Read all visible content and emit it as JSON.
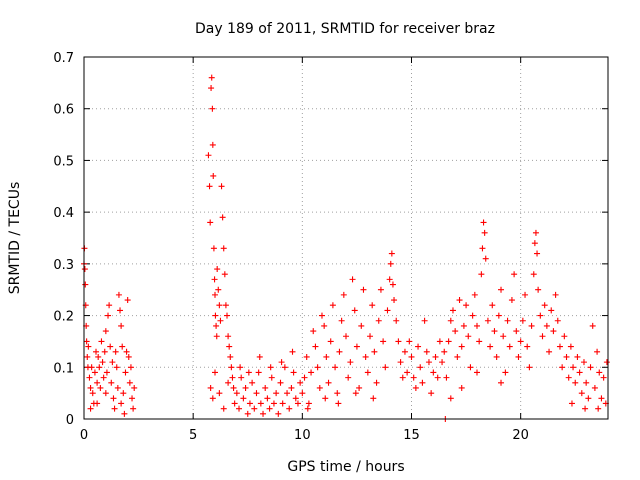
{
  "chart_data": {
    "type": "scatter",
    "title": "Day 189 of 2011, SRMTID for receiver braz",
    "xlabel": "GPS time / hours",
    "ylabel": "SRMTID / TECUs",
    "xlim": [
      0,
      24
    ],
    "ylim": [
      0,
      0.7
    ],
    "xticks": [
      0,
      5,
      10,
      15,
      20
    ],
    "xtick_labels": [
      "0",
      "5",
      "10",
      "15",
      "20"
    ],
    "yticks": [
      0,
      0.1,
      0.2,
      0.3,
      0.4,
      0.5,
      0.6,
      0.7
    ],
    "ytick_labels": [
      "0",
      "0.1",
      "0.2",
      "0.3",
      "0.4",
      "0.5",
      "0.6",
      "0.7"
    ],
    "grid": true,
    "marker": "+",
    "series": [
      {
        "name": "SRMTID",
        "color": "#ff0000",
        "points": [
          [
            0.0,
            0.3
          ],
          [
            0.02,
            0.33
          ],
          [
            0.04,
            0.29
          ],
          [
            0.06,
            0.26
          ],
          [
            0.08,
            0.22
          ],
          [
            0.1,
            0.18
          ],
          [
            0.12,
            0.15
          ],
          [
            0.15,
            0.12
          ],
          [
            0.18,
            0.1
          ],
          [
            0.2,
            0.14
          ],
          [
            0.25,
            0.08
          ],
          [
            0.3,
            0.06
          ],
          [
            0.35,
            0.1
          ],
          [
            0.4,
            0.05
          ],
          [
            0.45,
            0.03
          ],
          [
            0.5,
            0.09
          ],
          [
            0.55,
            0.13
          ],
          [
            0.6,
            0.07
          ],
          [
            0.65,
            0.12
          ],
          [
            0.7,
            0.1
          ],
          [
            0.75,
            0.06
          ],
          [
            0.8,
            0.15
          ],
          [
            0.85,
            0.11
          ],
          [
            0.9,
            0.08
          ],
          [
            0.95,
            0.13
          ],
          [
            1.0,
            0.17
          ],
          [
            1.05,
            0.09
          ],
          [
            1.1,
            0.2
          ],
          [
            1.15,
            0.22
          ],
          [
            1.2,
            0.14
          ],
          [
            1.25,
            0.07
          ],
          [
            1.3,
            0.11
          ],
          [
            1.35,
            0.04
          ],
          [
            1.4,
            0.02
          ],
          [
            1.45,
            0.13
          ],
          [
            1.5,
            0.1
          ],
          [
            1.55,
            0.06
          ],
          [
            1.6,
            0.24
          ],
          [
            1.65,
            0.21
          ],
          [
            1.7,
            0.18
          ],
          [
            1.75,
            0.14
          ],
          [
            1.8,
            0.05
          ],
          [
            1.85,
            0.01
          ],
          [
            1.9,
            0.09
          ],
          [
            1.95,
            0.13
          ],
          [
            2.0,
            0.23
          ],
          [
            2.05,
            0.12
          ],
          [
            2.1,
            0.07
          ],
          [
            2.15,
            0.1
          ],
          [
            2.2,
            0.04
          ],
          [
            2.25,
            0.02
          ],
          [
            2.3,
            0.06
          ],
          [
            0.3,
            0.02
          ],
          [
            0.6,
            0.03
          ],
          [
            1.0,
            0.05
          ],
          [
            1.7,
            0.03
          ],
          [
            5.7,
            0.51
          ],
          [
            5.75,
            0.45
          ],
          [
            5.78,
            0.38
          ],
          [
            5.82,
            0.64
          ],
          [
            5.85,
            0.66
          ],
          [
            5.88,
            0.6
          ],
          [
            5.9,
            0.53
          ],
          [
            5.92,
            0.47
          ],
          [
            5.95,
            0.33
          ],
          [
            5.98,
            0.27
          ],
          [
            6.0,
            0.24
          ],
          [
            6.02,
            0.2
          ],
          [
            6.05,
            0.18
          ],
          [
            6.08,
            0.16
          ],
          [
            6.1,
            0.29
          ],
          [
            6.15,
            0.25
          ],
          [
            6.2,
            0.22
          ],
          [
            6.25,
            0.19
          ],
          [
            6.3,
            0.45
          ],
          [
            6.35,
            0.39
          ],
          [
            6.4,
            0.33
          ],
          [
            6.45,
            0.28
          ],
          [
            6.5,
            0.22
          ],
          [
            6.55,
            0.2
          ],
          [
            6.6,
            0.16
          ],
          [
            6.65,
            0.14
          ],
          [
            6.7,
            0.12
          ],
          [
            6.75,
            0.1
          ],
          [
            6.8,
            0.08
          ],
          [
            6.85,
            0.06
          ],
          [
            6.9,
            0.03
          ],
          [
            5.8,
            0.06
          ],
          [
            5.9,
            0.04
          ],
          [
            6.0,
            0.09
          ],
          [
            6.2,
            0.05
          ],
          [
            6.4,
            0.02
          ],
          [
            6.6,
            0.07
          ],
          [
            7.0,
            0.05
          ],
          [
            7.1,
            0.02
          ],
          [
            7.2,
            0.08
          ],
          [
            7.3,
            0.04
          ],
          [
            7.4,
            0.06
          ],
          [
            7.5,
            0.01
          ],
          [
            7.6,
            0.03
          ],
          [
            7.7,
            0.07
          ],
          [
            7.8,
            0.02
          ],
          [
            7.9,
            0.05
          ],
          [
            8.0,
            0.09
          ],
          [
            8.1,
            0.03
          ],
          [
            8.2,
            0.01
          ],
          [
            8.3,
            0.06
          ],
          [
            8.4,
            0.04
          ],
          [
            8.5,
            0.02
          ],
          [
            8.6,
            0.08
          ],
          [
            8.7,
            0.03
          ],
          [
            8.8,
            0.05
          ],
          [
            8.9,
            0.01
          ],
          [
            9.0,
            0.07
          ],
          [
            9.1,
            0.03
          ],
          [
            9.2,
            0.1
          ],
          [
            9.3,
            0.05
          ],
          [
            9.4,
            0.02
          ],
          [
            9.5,
            0.06
          ],
          [
            9.6,
            0.09
          ],
          [
            9.7,
            0.04
          ],
          [
            9.8,
            0.03
          ],
          [
            9.9,
            0.07
          ],
          [
            7.15,
            0.1
          ],
          [
            7.55,
            0.09
          ],
          [
            8.05,
            0.12
          ],
          [
            8.55,
            0.1
          ],
          [
            9.05,
            0.11
          ],
          [
            9.55,
            0.13
          ],
          [
            10.0,
            0.05
          ],
          [
            10.1,
            0.08
          ],
          [
            10.2,
            0.12
          ],
          [
            10.3,
            0.03
          ],
          [
            10.4,
            0.09
          ],
          [
            10.5,
            0.17
          ],
          [
            10.6,
            0.14
          ],
          [
            10.7,
            0.1
          ],
          [
            10.8,
            0.06
          ],
          [
            10.9,
            0.2
          ],
          [
            11.0,
            0.18
          ],
          [
            11.1,
            0.12
          ],
          [
            11.2,
            0.07
          ],
          [
            11.3,
            0.15
          ],
          [
            11.4,
            0.22
          ],
          [
            11.5,
            0.1
          ],
          [
            11.6,
            0.05
          ],
          [
            11.7,
            0.13
          ],
          [
            11.8,
            0.19
          ],
          [
            11.9,
            0.24
          ],
          [
            12.0,
            0.16
          ],
          [
            12.1,
            0.08
          ],
          [
            12.2,
            0.11
          ],
          [
            12.3,
            0.27
          ],
          [
            12.4,
            0.21
          ],
          [
            12.5,
            0.14
          ],
          [
            12.6,
            0.06
          ],
          [
            12.7,
            0.18
          ],
          [
            12.8,
            0.25
          ],
          [
            12.9,
            0.12
          ],
          [
            13.0,
            0.09
          ],
          [
            13.1,
            0.16
          ],
          [
            13.2,
            0.22
          ],
          [
            13.3,
            0.13
          ],
          [
            13.4,
            0.07
          ],
          [
            13.5,
            0.19
          ],
          [
            13.6,
            0.25
          ],
          [
            13.7,
            0.15
          ],
          [
            13.8,
            0.1
          ],
          [
            13.9,
            0.21
          ],
          [
            14.0,
            0.27
          ],
          [
            14.05,
            0.3
          ],
          [
            14.1,
            0.32
          ],
          [
            14.15,
            0.26
          ],
          [
            14.2,
            0.23
          ],
          [
            14.3,
            0.19
          ],
          [
            14.4,
            0.15
          ],
          [
            14.5,
            0.11
          ],
          [
            14.6,
            0.08
          ],
          [
            14.7,
            0.13
          ],
          [
            14.8,
            0.09
          ],
          [
            14.9,
            0.15
          ],
          [
            10.25,
            0.02
          ],
          [
            11.05,
            0.04
          ],
          [
            11.65,
            0.03
          ],
          [
            12.45,
            0.05
          ],
          [
            13.25,
            0.04
          ],
          [
            15.0,
            0.12
          ],
          [
            15.1,
            0.08
          ],
          [
            15.2,
            0.06
          ],
          [
            15.3,
            0.14
          ],
          [
            15.4,
            0.1
          ],
          [
            15.5,
            0.07
          ],
          [
            15.6,
            0.19
          ],
          [
            15.7,
            0.13
          ],
          [
            15.8,
            0.11
          ],
          [
            15.9,
            0.05
          ],
          [
            16.0,
            0.09
          ],
          [
            16.1,
            0.12
          ],
          [
            16.2,
            0.08
          ],
          [
            16.3,
            0.15
          ],
          [
            16.4,
            0.11
          ],
          [
            16.5,
            0.13
          ],
          [
            16.55,
            0.0
          ],
          [
            16.6,
            0.08
          ],
          [
            16.7,
            0.15
          ],
          [
            16.8,
            0.19
          ],
          [
            16.9,
            0.21
          ],
          [
            17.0,
            0.17
          ],
          [
            17.1,
            0.12
          ],
          [
            17.2,
            0.23
          ],
          [
            17.3,
            0.14
          ],
          [
            17.4,
            0.18
          ],
          [
            17.5,
            0.22
          ],
          [
            17.6,
            0.16
          ],
          [
            17.7,
            0.1
          ],
          [
            17.8,
            0.2
          ],
          [
            17.9,
            0.24
          ],
          [
            18.0,
            0.18
          ],
          [
            18.1,
            0.15
          ],
          [
            18.2,
            0.28
          ],
          [
            18.25,
            0.33
          ],
          [
            18.3,
            0.38
          ],
          [
            18.35,
            0.36
          ],
          [
            18.4,
            0.31
          ],
          [
            18.5,
            0.19
          ],
          [
            18.6,
            0.14
          ],
          [
            18.7,
            0.22
          ],
          [
            18.8,
            0.17
          ],
          [
            18.9,
            0.12
          ],
          [
            19.0,
            0.2
          ],
          [
            19.1,
            0.25
          ],
          [
            19.2,
            0.16
          ],
          [
            19.3,
            0.09
          ],
          [
            19.4,
            0.19
          ],
          [
            19.5,
            0.14
          ],
          [
            19.6,
            0.23
          ],
          [
            19.7,
            0.28
          ],
          [
            19.8,
            0.17
          ],
          [
            19.9,
            0.12
          ],
          [
            16.8,
            0.04
          ],
          [
            17.3,
            0.06
          ],
          [
            18.0,
            0.09
          ],
          [
            19.1,
            0.07
          ],
          [
            20.0,
            0.15
          ],
          [
            20.1,
            0.19
          ],
          [
            20.2,
            0.24
          ],
          [
            20.3,
            0.14
          ],
          [
            20.4,
            0.1
          ],
          [
            20.5,
            0.18
          ],
          [
            20.6,
            0.28
          ],
          [
            20.65,
            0.34
          ],
          [
            20.7,
            0.36
          ],
          [
            20.75,
            0.32
          ],
          [
            20.8,
            0.25
          ],
          [
            20.9,
            0.2
          ],
          [
            21.0,
            0.16
          ],
          [
            21.1,
            0.22
          ],
          [
            21.2,
            0.18
          ],
          [
            21.3,
            0.13
          ],
          [
            21.4,
            0.21
          ],
          [
            21.5,
            0.17
          ],
          [
            21.6,
            0.24
          ],
          [
            21.7,
            0.19
          ],
          [
            21.8,
            0.14
          ],
          [
            21.9,
            0.1
          ],
          [
            22.0,
            0.16
          ],
          [
            22.1,
            0.12
          ],
          [
            22.2,
            0.08
          ],
          [
            22.3,
            0.14
          ],
          [
            22.4,
            0.1
          ],
          [
            22.5,
            0.07
          ],
          [
            22.6,
            0.12
          ],
          [
            22.7,
            0.09
          ],
          [
            22.8,
            0.05
          ],
          [
            22.9,
            0.11
          ],
          [
            23.0,
            0.07
          ],
          [
            23.1,
            0.04
          ],
          [
            23.2,
            0.1
          ],
          [
            23.3,
            0.18
          ],
          [
            23.4,
            0.06
          ],
          [
            23.5,
            0.13
          ],
          [
            23.6,
            0.09
          ],
          [
            23.7,
            0.04
          ],
          [
            23.8,
            0.08
          ],
          [
            23.9,
            0.03
          ],
          [
            23.95,
            0.11
          ],
          [
            22.35,
            0.03
          ],
          [
            22.95,
            0.02
          ],
          [
            23.55,
            0.02
          ]
        ]
      }
    ]
  }
}
